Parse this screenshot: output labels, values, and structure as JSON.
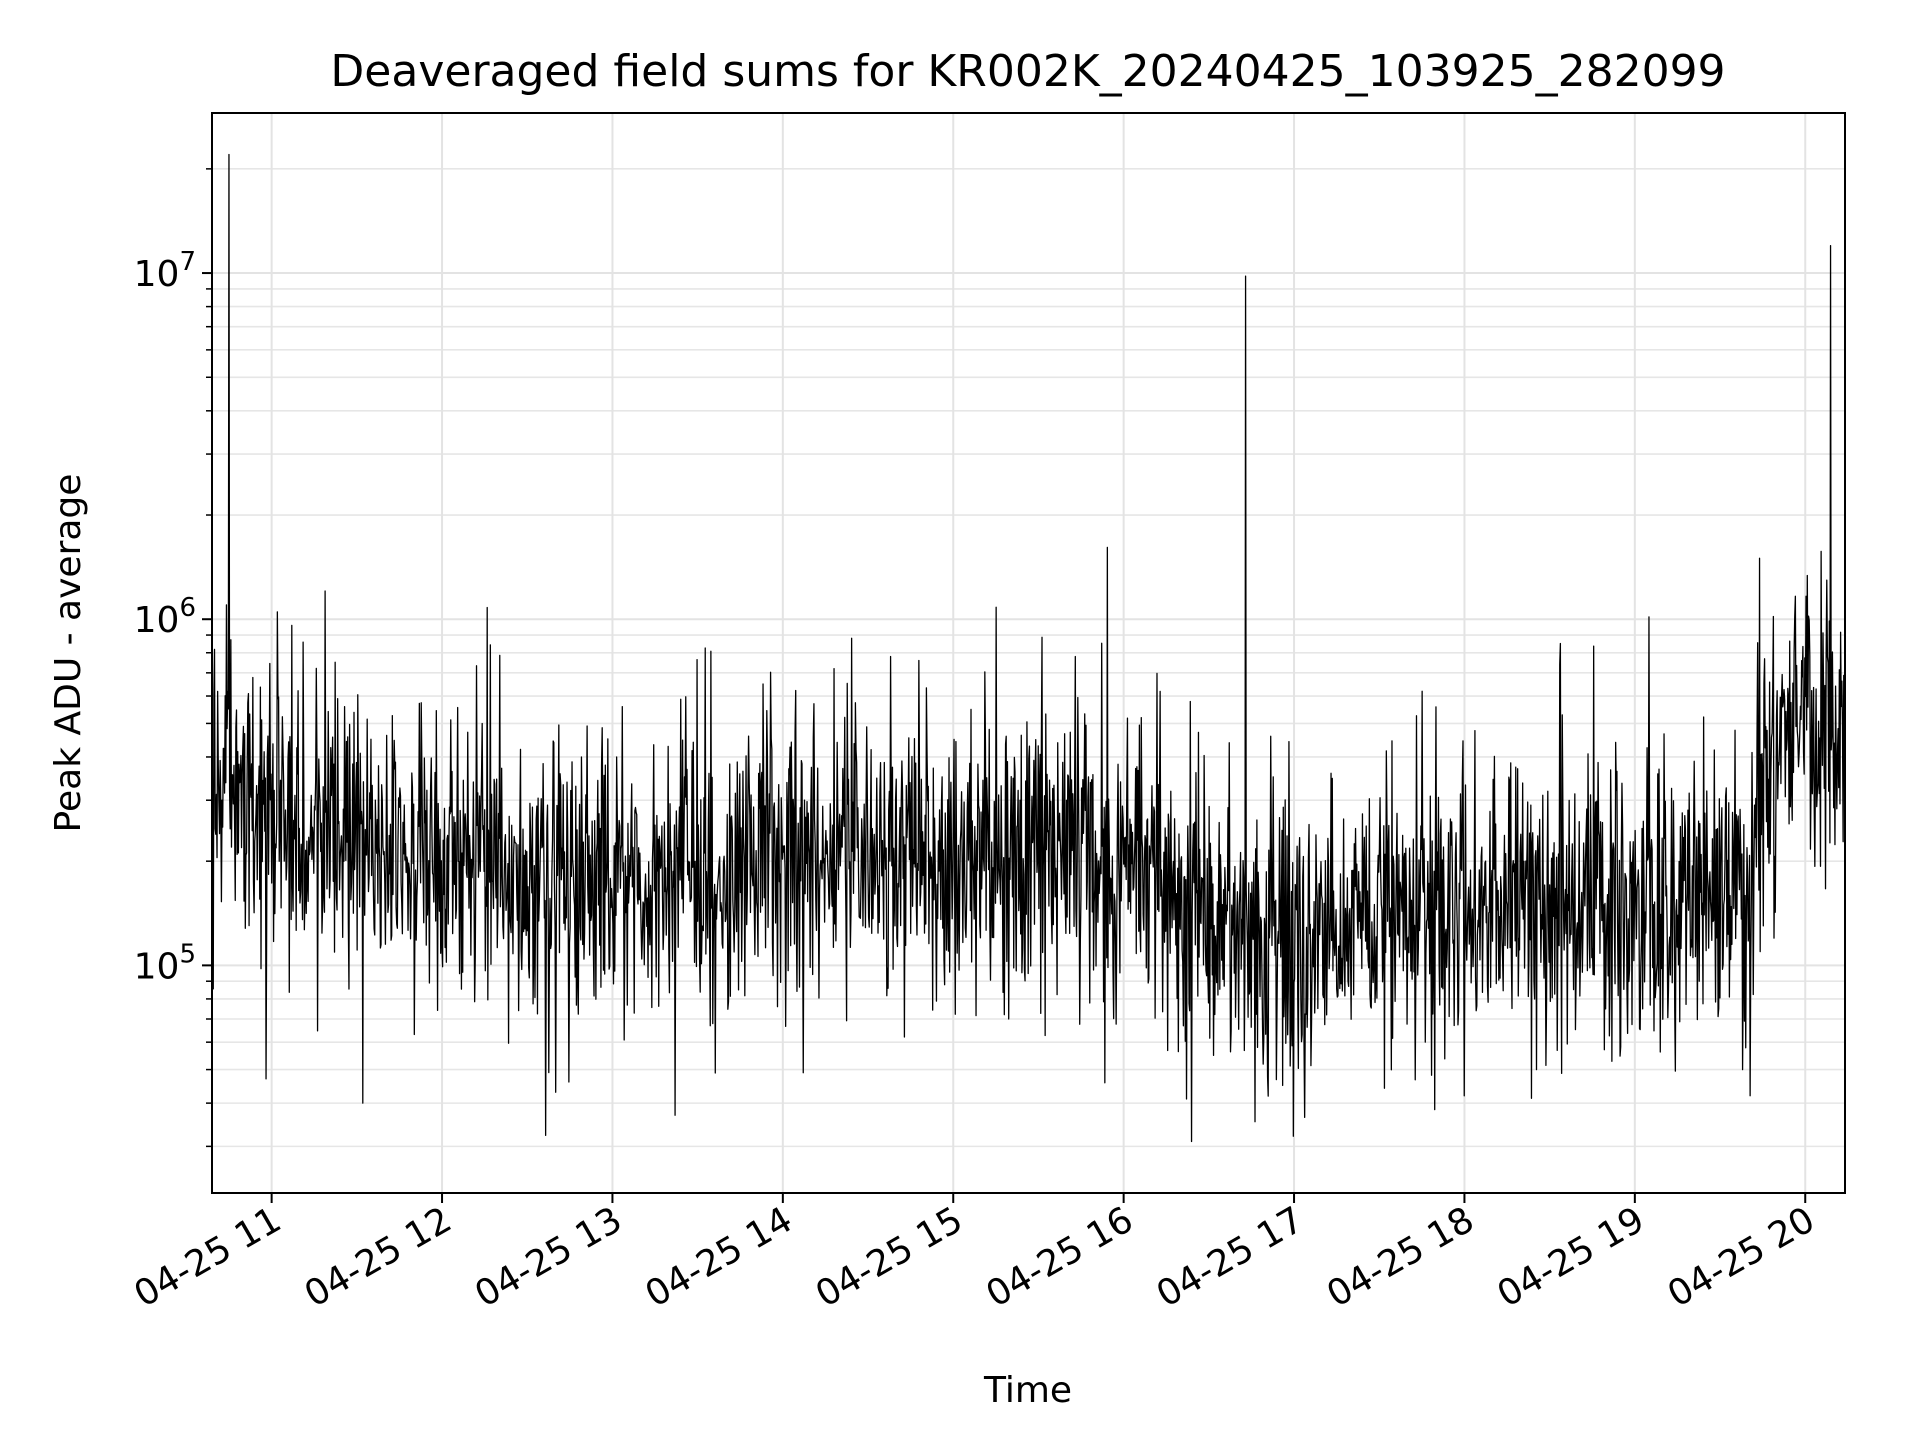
{
  "chart_data": {
    "type": "line",
    "title": "Deaveraged field sums for KR002K_20240425_103925_282099",
    "xlabel": "Time",
    "ylabel": "Peak ADU - average",
    "y_scale": "log",
    "grid": "on (major and minor)",
    "legend": "none",
    "x_date_range": [
      "2024-04-25 10:39",
      "2024-04-25 20:14"
    ],
    "ylim": [
      22000,
      29000000
    ],
    "x_ticks": [
      {
        "time": "2024-04-25 11:00",
        "label": "04-25 11"
      },
      {
        "time": "2024-04-25 12:00",
        "label": "04-25 12"
      },
      {
        "time": "2024-04-25 13:00",
        "label": "04-25 13"
      },
      {
        "time": "2024-04-25 14:00",
        "label": "04-25 14"
      },
      {
        "time": "2024-04-25 15:00",
        "label": "04-25 15"
      },
      {
        "time": "2024-04-25 16:00",
        "label": "04-25 16"
      },
      {
        "time": "2024-04-25 17:00",
        "label": "04-25 17"
      },
      {
        "time": "2024-04-25 18:00",
        "label": "04-25 18"
      },
      {
        "time": "2024-04-25 19:00",
        "label": "04-25 19"
      },
      {
        "time": "2024-04-25 20:00",
        "label": "04-25 20"
      }
    ],
    "y_ticks": [
      {
        "value": 100000,
        "base": "10",
        "exp": "5"
      },
      {
        "value": 1000000,
        "base": "10",
        "exp": "6"
      },
      {
        "value": 10000000,
        "base": "10",
        "exp": "7"
      }
    ],
    "series": [
      {
        "color": "#000000",
        "baseline": [
          [
            "2024-04-25 10:39",
            320000
          ],
          [
            "2024-04-25 10:50",
            300000
          ],
          [
            "2024-04-25 11:00",
            330000
          ],
          [
            "2024-04-25 11:15",
            240000
          ],
          [
            "2024-04-25 11:30",
            220000
          ],
          [
            "2024-04-25 12:00",
            200000
          ],
          [
            "2024-04-25 12:30",
            190000
          ],
          [
            "2024-04-25 13:00",
            180000
          ],
          [
            "2024-04-25 13:30",
            170000
          ],
          [
            "2024-04-25 14:00",
            200000
          ],
          [
            "2024-04-25 14:30",
            220000
          ],
          [
            "2024-04-25 15:00",
            200000
          ],
          [
            "2024-04-25 15:30",
            210000
          ],
          [
            "2024-04-25 16:00",
            190000
          ],
          [
            "2024-04-25 16:20",
            140000
          ],
          [
            "2024-04-25 16:40",
            120000
          ],
          [
            "2024-04-25 17:00",
            110000
          ],
          [
            "2024-04-25 17:20",
            140000
          ],
          [
            "2024-04-25 17:45",
            160000
          ],
          [
            "2024-04-25 18:15",
            155000
          ],
          [
            "2024-04-25 18:45",
            150000
          ],
          [
            "2024-04-25 19:15",
            160000
          ],
          [
            "2024-04-25 19:40",
            170000
          ],
          [
            "2024-04-25 19:45",
            380000
          ],
          [
            "2024-04-25 20:00",
            450000
          ],
          [
            "2024-04-25 20:14",
            520000
          ]
        ],
        "spikes": [
          [
            "2024-04-25 10:45",
            22000000
          ],
          [
            "2024-04-25 10:44",
            1100000
          ],
          [
            "2024-04-25 11:02",
            1050000
          ],
          [
            "2024-04-25 11:07",
            960000
          ],
          [
            "2024-04-25 13:53",
            650000
          ],
          [
            "2024-04-25 14:18",
            720000
          ],
          [
            "2024-04-25 14:38",
            780000
          ],
          [
            "2024-04-25 14:48",
            760000
          ],
          [
            "2024-04-25 15:43",
            780000
          ],
          [
            "2024-04-25 16:43",
            9800000
          ],
          [
            "2024-04-25 19:44",
            1500000
          ],
          [
            "2024-04-25 20:09",
            12000000
          ]
        ],
        "dips": [
          [
            "2024-04-25 10:58",
            47000
          ],
          [
            "2024-04-25 11:32",
            40000
          ],
          [
            "2024-04-25 12:40",
            43000
          ],
          [
            "2024-04-25 16:24",
            31000
          ],
          [
            "2024-04-25 16:56",
            45000
          ],
          [
            "2024-04-25 18:00",
            42000
          ],
          [
            "2024-04-25 19:38",
            50000
          ]
        ],
        "noise_spread_decades": 0.35,
        "sample_count": 2600
      }
    ]
  }
}
